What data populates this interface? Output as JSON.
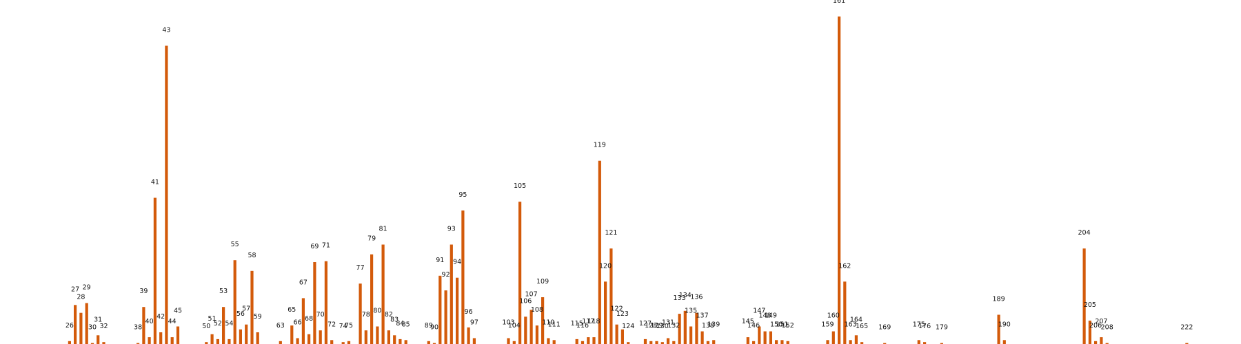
{
  "chart_data": {
    "type": "bar",
    "title": "",
    "xlabel": "",
    "ylabel": "",
    "grid": false,
    "legend": "none",
    "bar_color": "#d35a0a",
    "ylim": [
      0,
      168
    ],
    "xlim": [
      16,
      226
    ],
    "bars": [
      {
        "x": 26,
        "y": 1.5
      },
      {
        "x": 27,
        "y": 20
      },
      {
        "x": 28,
        "y": 16
      },
      {
        "x": 29,
        "y": 21
      },
      {
        "x": 30,
        "y": 0.5
      },
      {
        "x": 31,
        "y": 4.5
      },
      {
        "x": 32,
        "y": 1
      },
      {
        "x": 38,
        "y": 0.5
      },
      {
        "x": 39,
        "y": 19
      },
      {
        "x": 40,
        "y": 3.5
      },
      {
        "x": 41,
        "y": 75
      },
      {
        "x": 42,
        "y": 6
      },
      {
        "x": 43,
        "y": 153
      },
      {
        "x": 44,
        "y": 3.5
      },
      {
        "x": 45,
        "y": 9
      },
      {
        "x": 50,
        "y": 1
      },
      {
        "x": 51,
        "y": 5
      },
      {
        "x": 52,
        "y": 2.5
      },
      {
        "x": 53,
        "y": 19
      },
      {
        "x": 54,
        "y": 2.5
      },
      {
        "x": 55,
        "y": 43
      },
      {
        "x": 56,
        "y": 7.5
      },
      {
        "x": 57,
        "y": 10
      },
      {
        "x": 58,
        "y": 37.5
      },
      {
        "x": 59,
        "y": 6
      },
      {
        "x": 63,
        "y": 1.5
      },
      {
        "x": 65,
        "y": 9.5
      },
      {
        "x": 66,
        "y": 3
      },
      {
        "x": 67,
        "y": 23.5
      },
      {
        "x": 68,
        "y": 5
      },
      {
        "x": 69,
        "y": 42
      },
      {
        "x": 70,
        "y": 7
      },
      {
        "x": 71,
        "y": 42.5
      },
      {
        "x": 72,
        "y": 2
      },
      {
        "x": 74,
        "y": 1
      },
      {
        "x": 75,
        "y": 1.5
      },
      {
        "x": 77,
        "y": 31
      },
      {
        "x": 78,
        "y": 7
      },
      {
        "x": 79,
        "y": 46
      },
      {
        "x": 80,
        "y": 9
      },
      {
        "x": 81,
        "y": 51
      },
      {
        "x": 82,
        "y": 7
      },
      {
        "x": 83,
        "y": 4.5
      },
      {
        "x": 84,
        "y": 2.5
      },
      {
        "x": 85,
        "y": 2
      },
      {
        "x": 89,
        "y": 1.5
      },
      {
        "x": 90,
        "y": 0.5
      },
      {
        "x": 91,
        "y": 35
      },
      {
        "x": 92,
        "y": 27.5
      },
      {
        "x": 93,
        "y": 51
      },
      {
        "x": 94,
        "y": 34
      },
      {
        "x": 95,
        "y": 68.5
      },
      {
        "x": 96,
        "y": 8.5
      },
      {
        "x": 97,
        "y": 3
      },
      {
        "x": 103,
        "y": 3
      },
      {
        "x": 104,
        "y": 1.5
      },
      {
        "x": 105,
        "y": 73
      },
      {
        "x": 106,
        "y": 14
      },
      {
        "x": 107,
        "y": 17.5
      },
      {
        "x": 108,
        "y": 9.5
      },
      {
        "x": 109,
        "y": 24
      },
      {
        "x": 110,
        "y": 3
      },
      {
        "x": 111,
        "y": 2
      },
      {
        "x": 115,
        "y": 2.5
      },
      {
        "x": 116,
        "y": 1.5
      },
      {
        "x": 117,
        "y": 3.5
      },
      {
        "x": 118,
        "y": 3.5
      },
      {
        "x": 119,
        "y": 94
      },
      {
        "x": 120,
        "y": 32
      },
      {
        "x": 121,
        "y": 49
      },
      {
        "x": 122,
        "y": 10
      },
      {
        "x": 123,
        "y": 7.5
      },
      {
        "x": 124,
        "y": 1
      },
      {
        "x": 127,
        "y": 2.5
      },
      {
        "x": 128,
        "y": 1.5
      },
      {
        "x": 129,
        "y": 1.5
      },
      {
        "x": 130,
        "y": 1
      },
      {
        "x": 131,
        "y": 3
      },
      {
        "x": 132,
        "y": 1.5
      },
      {
        "x": 133,
        "y": 15.5
      },
      {
        "x": 134,
        "y": 17
      },
      {
        "x": 135,
        "y": 9
      },
      {
        "x": 136,
        "y": 16
      },
      {
        "x": 137,
        "y": 6.5
      },
      {
        "x": 138,
        "y": 1.5
      },
      {
        "x": 139,
        "y": 2
      },
      {
        "x": 145,
        "y": 3.5
      },
      {
        "x": 146,
        "y": 1.5
      },
      {
        "x": 147,
        "y": 9
      },
      {
        "x": 148,
        "y": 6.5
      },
      {
        "x": 149,
        "y": 6.5
      },
      {
        "x": 150,
        "y": 2
      },
      {
        "x": 151,
        "y": 2
      },
      {
        "x": 152,
        "y": 1.5
      },
      {
        "x": 159,
        "y": 2
      },
      {
        "x": 160,
        "y": 6.5
      },
      {
        "x": 161,
        "y": 168
      },
      {
        "x": 162,
        "y": 32
      },
      {
        "x": 163,
        "y": 2
      },
      {
        "x": 164,
        "y": 4.5
      },
      {
        "x": 165,
        "y": 1
      },
      {
        "x": 169,
        "y": 0.5
      },
      {
        "x": 175,
        "y": 2
      },
      {
        "x": 176,
        "y": 1
      },
      {
        "x": 179,
        "y": 0.5
      },
      {
        "x": 189,
        "y": 15
      },
      {
        "x": 190,
        "y": 2
      },
      {
        "x": 204,
        "y": 49
      },
      {
        "x": 205,
        "y": 12
      },
      {
        "x": 206,
        "y": 1.5
      },
      {
        "x": 207,
        "y": 3.5
      },
      {
        "x": 208,
        "y": 0.5
      },
      {
        "x": 222,
        "y": 0.5
      }
    ]
  }
}
